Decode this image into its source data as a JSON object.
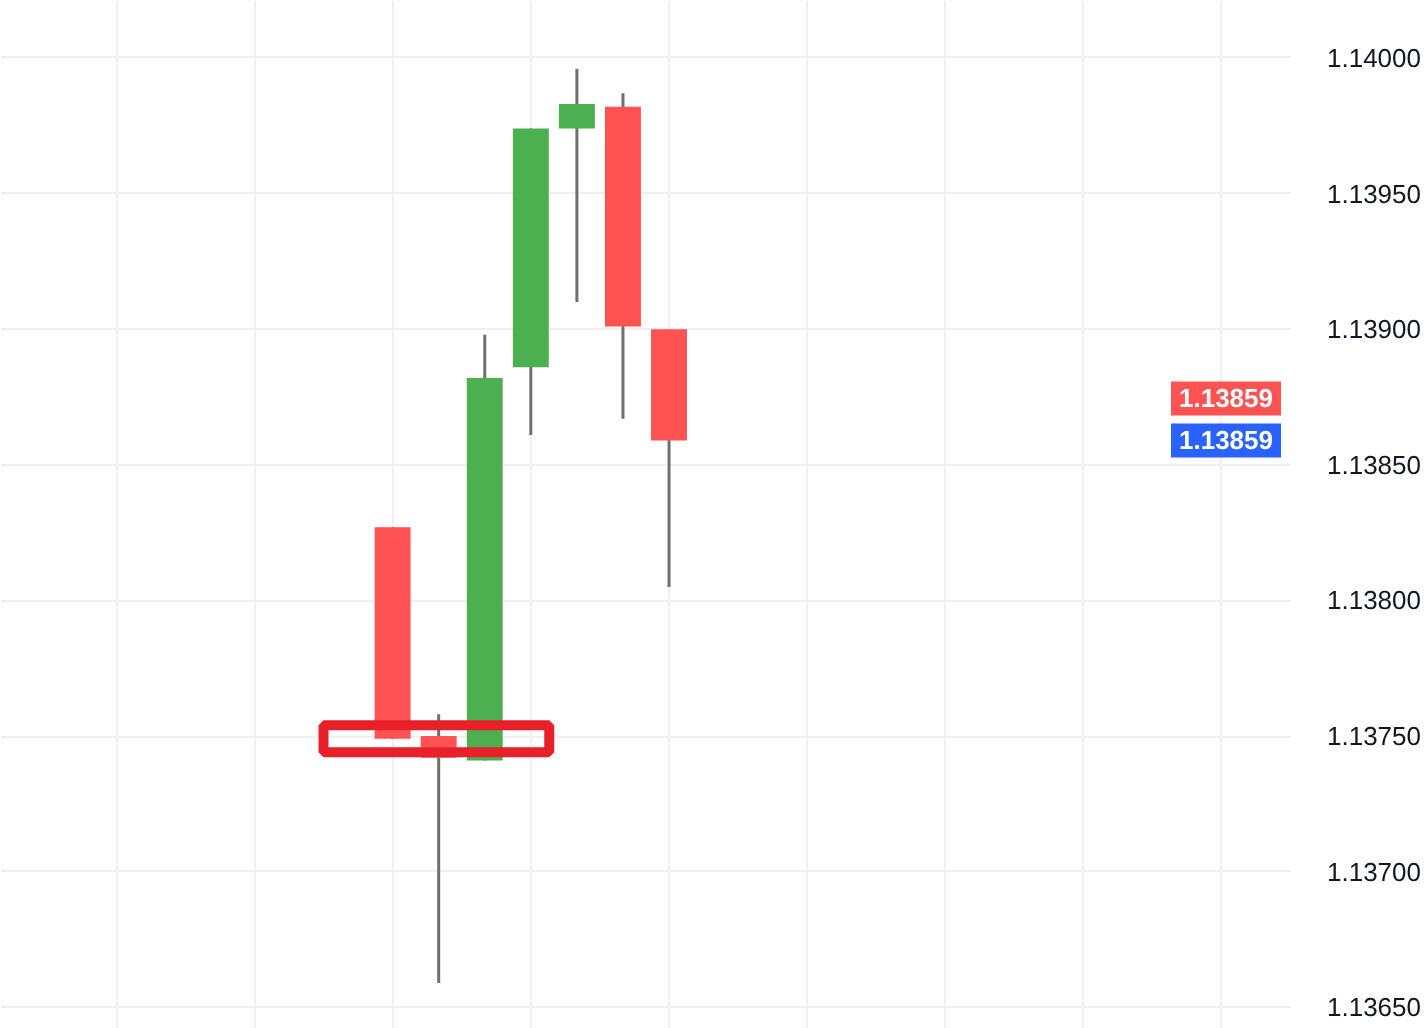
{
  "chart_data": {
    "type": "candlestick",
    "categories": [
      null,
      null,
      null,
      null,
      null,
      null,
      null,
      null,
      null,
      null,
      null,
      null,
      null,
      null,
      null,
      null,
      null,
      null,
      null,
      null,
      null,
      null,
      null,
      null,
      null,
      null,
      null,
      null
    ],
    "ohlc": [
      null,
      null,
      null,
      null,
      null,
      null,
      null,
      null,
      [
        1.13827,
        1.13827,
        1.13749,
        1.13749
      ],
      [
        1.1375,
        1.13758,
        1.13659,
        1.13742
      ],
      [
        1.13741,
        1.13898,
        1.13741,
        1.13882
      ],
      [
        1.13886,
        1.13974,
        1.13861,
        1.13974
      ],
      [
        1.13974,
        1.13996,
        1.1391,
        1.13983
      ],
      [
        1.13982,
        1.13987,
        1.13867,
        1.13901
      ],
      [
        1.139,
        1.139,
        1.13805,
        1.13859
      ],
      null,
      null,
      null,
      null,
      null,
      null,
      null,
      null,
      null,
      null,
      null,
      null,
      null
    ],
    "colors": [
      null,
      null,
      null,
      null,
      null,
      null,
      null,
      null,
      "#ff5252",
      "#ff5252",
      "#4caf50",
      "#4caf50",
      "#4caf50",
      "#ff5252",
      "#ff5252",
      null,
      null,
      null,
      null,
      null,
      null,
      null,
      null,
      null,
      null,
      null,
      null,
      null
    ],
    "ylim": [
      1.13642,
      1.14021
    ],
    "yticks": [
      {
        "value": 1.1365,
        "label": "1.13650"
      },
      {
        "value": 1.137,
        "label": "1.13700"
      },
      {
        "value": 1.1375,
        "label": "1.13750"
      },
      {
        "value": 1.138,
        "label": "1.13800"
      },
      {
        "value": 1.1385,
        "label": "1.13850"
      },
      {
        "value": 1.139,
        "label": "1.13900"
      },
      {
        "value": 1.1395,
        "label": "1.13950"
      },
      {
        "value": 1.14,
        "label": "1.14000"
      }
    ],
    "annotations": [
      "1.13859",
      "1.13859"
    ],
    "grid": true
  }
}
